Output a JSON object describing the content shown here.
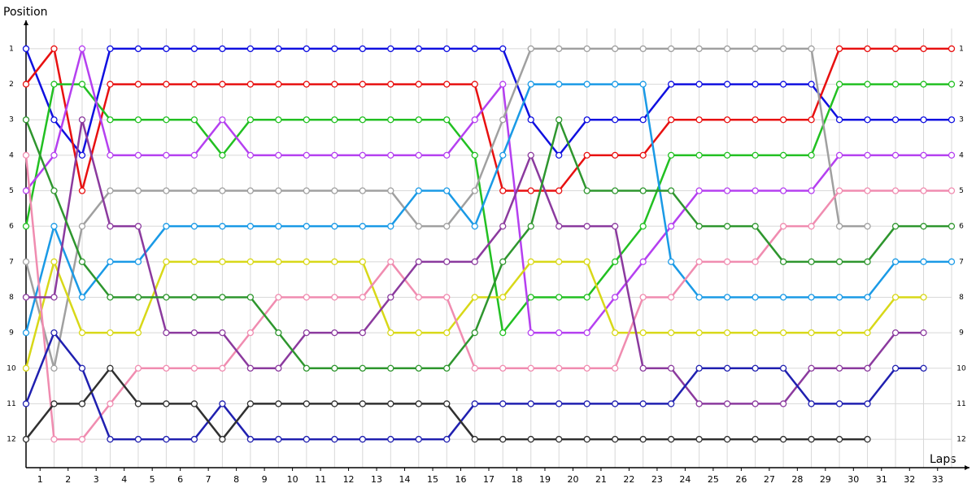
{
  "chart_data": {
    "type": "line",
    "y_label": "Position",
    "x_label": "Laps",
    "x": [
      0,
      1,
      2,
      3,
      4,
      5,
      6,
      7,
      8,
      9,
      10,
      11,
      12,
      13,
      14,
      15,
      16,
      17,
      18,
      19,
      20,
      21,
      22,
      23,
      24,
      25,
      26,
      27,
      28,
      29,
      30,
      31,
      32,
      33
    ],
    "xlim": [
      0,
      33
    ],
    "xticks": [
      {
        "value": 0.5,
        "label": "1"
      },
      {
        "value": 1.5,
        "label": "2"
      },
      {
        "value": 2.5,
        "label": "3"
      },
      {
        "value": 3.5,
        "label": "4"
      },
      {
        "value": 4.5,
        "label": "5"
      },
      {
        "value": 5.5,
        "label": "6"
      },
      {
        "value": 6.5,
        "label": "7"
      },
      {
        "value": 7.5,
        "label": "8"
      },
      {
        "value": 8.5,
        "label": "9"
      },
      {
        "value": 9.5,
        "label": "10"
      },
      {
        "value": 10.5,
        "label": "11"
      },
      {
        "value": 11.5,
        "label": "12"
      },
      {
        "value": 12.5,
        "label": "13"
      },
      {
        "value": 13.5,
        "label": "14"
      },
      {
        "value": 14.5,
        "label": "15"
      },
      {
        "value": 15.5,
        "label": "16"
      },
      {
        "value": 16.5,
        "label": "17"
      },
      {
        "value": 17.5,
        "label": "18"
      },
      {
        "value": 18.5,
        "label": "19"
      },
      {
        "value": 19.5,
        "label": "20"
      },
      {
        "value": 20.5,
        "label": "21"
      },
      {
        "value": 21.5,
        "label": "22"
      },
      {
        "value": 22.5,
        "label": "23"
      },
      {
        "value": 23.5,
        "label": "24"
      },
      {
        "value": 24.5,
        "label": "25"
      },
      {
        "value": 25.5,
        "label": "26"
      },
      {
        "value": 26.5,
        "label": "27"
      },
      {
        "value": 27.5,
        "label": "28"
      },
      {
        "value": 28.5,
        "label": "29"
      },
      {
        "value": 29.5,
        "label": "30"
      },
      {
        "value": 30.5,
        "label": "31"
      },
      {
        "value": 31.5,
        "label": "32"
      },
      {
        "value": 32.5,
        "label": "33"
      }
    ],
    "ylim": [
      0.2,
      12.8
    ],
    "y_inverted": true,
    "yticks": [
      1,
      2,
      3,
      4,
      5,
      6,
      7,
      8,
      9,
      10,
      11,
      12
    ],
    "grid": true,
    "series": [
      {
        "color": "#1010e0",
        "values": [
          1,
          3,
          4,
          1,
          1,
          1,
          1,
          1,
          1,
          1,
          1,
          1,
          1,
          1,
          1,
          1,
          1,
          1,
          3,
          4,
          3,
          3,
          3,
          2,
          2,
          2,
          2,
          2,
          2,
          3,
          3,
          3,
          3,
          3
        ]
      },
      {
        "color": "#e81010",
        "values": [
          2,
          1,
          5,
          2,
          2,
          2,
          2,
          2,
          2,
          2,
          2,
          2,
          2,
          2,
          2,
          2,
          2,
          5,
          5,
          5,
          4,
          4,
          4,
          3,
          3,
          3,
          3,
          3,
          3,
          1,
          1,
          1,
          1,
          1
        ]
      },
      {
        "color": "#22c022",
        "values": [
          6,
          2,
          2,
          3,
          3,
          3,
          3,
          4,
          3,
          3,
          3,
          3,
          3,
          3,
          3,
          3,
          4,
          9,
          8,
          8,
          8,
          7,
          6,
          4,
          4,
          4,
          4,
          4,
          4,
          2,
          2,
          2,
          2,
          2
        ]
      },
      {
        "color": "#b540f0",
        "values": [
          5,
          4,
          1,
          4,
          4,
          4,
          4,
          3,
          4,
          4,
          4,
          4,
          4,
          4,
          4,
          4,
          3,
          2,
          9,
          9,
          9,
          8,
          7,
          6,
          5,
          5,
          5,
          5,
          5,
          4,
          4,
          4,
          4,
          4
        ]
      },
      {
        "color": "#a0a0a0",
        "values": [
          7,
          10,
          6,
          5,
          5,
          5,
          5,
          5,
          5,
          5,
          5,
          5,
          5,
          5,
          6,
          6,
          5,
          3,
          1,
          1,
          1,
          1,
          1,
          1,
          1,
          1,
          1,
          1,
          1,
          6,
          6,
          null,
          null,
          null
        ]
      },
      {
        "color": "#1a9ae6",
        "values": [
          9,
          6,
          8,
          7,
          7,
          6,
          6,
          6,
          6,
          6,
          6,
          6,
          6,
          6,
          5,
          5,
          6,
          4,
          2,
          2,
          2,
          2,
          2,
          7,
          8,
          8,
          8,
          8,
          8,
          8,
          8,
          7,
          7,
          7
        ]
      },
      {
        "color": "#d8d818",
        "values": [
          10,
          7,
          9,
          9,
          9,
          7,
          7,
          7,
          7,
          7,
          7,
          7,
          7,
          9,
          9,
          9,
          8,
          8,
          7,
          7,
          7,
          9,
          9,
          9,
          9,
          9,
          9,
          9,
          9,
          9,
          9,
          8,
          8,
          null
        ]
      },
      {
        "color": "#f08cb0",
        "values": [
          4,
          12,
          12,
          11,
          10,
          10,
          10,
          10,
          9,
          8,
          8,
          8,
          8,
          7,
          8,
          8,
          10,
          10,
          10,
          10,
          10,
          10,
          8,
          8,
          7,
          7,
          7,
          6,
          6,
          5,
          5,
          5,
          5,
          5
        ]
      },
      {
        "color": "#8b3a9e",
        "values": [
          8,
          8,
          3,
          6,
          6,
          9,
          9,
          9,
          10,
          10,
          9,
          9,
          9,
          8,
          7,
          7,
          7,
          6,
          4,
          6,
          6,
          6,
          10,
          10,
          11,
          11,
          11,
          11,
          10,
          10,
          10,
          9,
          9,
          null
        ]
      },
      {
        "color": "#2e962e",
        "values": [
          3,
          5,
          7,
          8,
          8,
          8,
          8,
          8,
          8,
          9,
          10,
          10,
          10,
          10,
          10,
          10,
          9,
          7,
          6,
          3,
          5,
          5,
          5,
          5,
          6,
          6,
          6,
          7,
          7,
          7,
          7,
          6,
          6,
          6
        ]
      },
      {
        "color": "#2020b0",
        "values": [
          11,
          9,
          10,
          12,
          12,
          12,
          12,
          11,
          12,
          12,
          12,
          12,
          12,
          12,
          12,
          12,
          11,
          11,
          11,
          11,
          11,
          11,
          11,
          11,
          10,
          10,
          10,
          10,
          11,
          11,
          11,
          10,
          10,
          null
        ]
      },
      {
        "color": "#303030",
        "values": [
          12,
          11,
          11,
          10,
          11,
          11,
          11,
          12,
          11,
          11,
          11,
          11,
          11,
          11,
          11,
          11,
          12,
          12,
          12,
          12,
          12,
          12,
          12,
          12,
          12,
          12,
          12,
          12,
          12,
          12,
          12,
          null,
          null,
          null
        ]
      }
    ]
  }
}
